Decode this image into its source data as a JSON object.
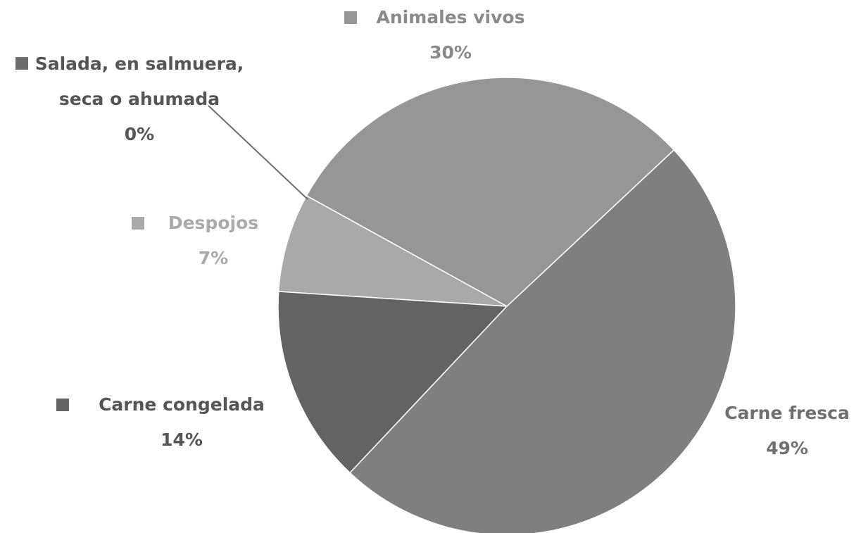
{
  "chart_data": {
    "type": "pie",
    "categories": [
      "Animales vivos",
      "Carne fresca",
      "Carne congelada",
      "Despojos",
      "Salada, en salmuera, seca o ahumada"
    ],
    "values": [
      30,
      49,
      14,
      7,
      0
    ],
    "value_labels": [
      "30%",
      "49%",
      "14%",
      "7%",
      "0%"
    ],
    "colors": [
      "#969696",
      "#7f7f7f",
      "#636363",
      "#a9a9a9",
      "#6e6e6e"
    ]
  }
}
